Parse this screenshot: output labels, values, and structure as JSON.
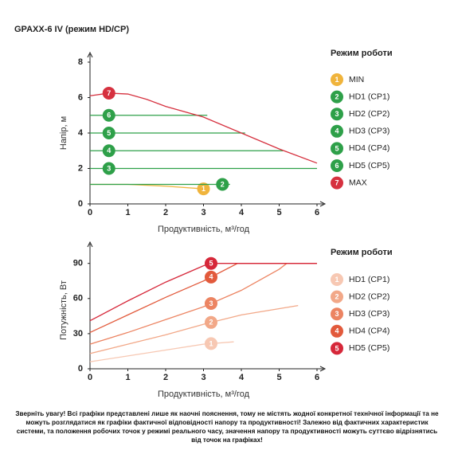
{
  "title": "GPAXX-6 IV (режим HD/CP)",
  "note": "Зверніть увагу! Всі графіки представлені лише як наочні пояснення, тому не містять жодної конкретної технічної інформації та не можуть розглядатися як графіки фактичної відповідності напору та продуктивності! Залежно від фактичних характеристик системи, та положення робочих точок у режимі реального часу, значення напору та продуктивності можуть суттєво відрізнятись від точок на графіках!",
  "chart_data": [
    {
      "type": "line",
      "x_label": "Продуктивність, м³/год",
      "y_label": "Напір, м",
      "legend_title": "Режим роботи",
      "xlim": [
        0,
        6
      ],
      "xticks": [
        0,
        1,
        2,
        3,
        4,
        5,
        6
      ],
      "ylim": [
        0,
        8
      ],
      "yticks": [
        0,
        2,
        4,
        6,
        8
      ],
      "series": [
        {
          "name": "MIN",
          "badge": "1",
          "badge_x": 3,
          "color": "#f0b43c",
          "x": [
            0,
            1,
            2,
            3
          ],
          "values": [
            1.1,
            1.1,
            1.0,
            0.85
          ]
        },
        {
          "name": "HD1 (CP1)",
          "badge": "2",
          "badge_x": 3.5,
          "color": "#2ea049",
          "x": [
            0,
            3.7
          ],
          "values": [
            1.1,
            1.1
          ]
        },
        {
          "name": "HD2 (CP2)",
          "badge": "3",
          "badge_x": 0.5,
          "color": "#2ea049",
          "x": [
            0,
            6
          ],
          "values": [
            2,
            2
          ]
        },
        {
          "name": "HD3 (CP3)",
          "badge": "4",
          "badge_x": 0.5,
          "color": "#2ea049",
          "x": [
            0,
            5.1
          ],
          "values": [
            3,
            3
          ]
        },
        {
          "name": "HD4 (CP4)",
          "badge": "5",
          "badge_x": 0.5,
          "color": "#2ea049",
          "x": [
            0,
            4.1
          ],
          "values": [
            4,
            4
          ]
        },
        {
          "name": "HD5 (CP5)",
          "badge": "6",
          "badge_x": 0.5,
          "color": "#2ea049",
          "x": [
            0,
            3.1
          ],
          "values": [
            5,
            5
          ]
        },
        {
          "name": "MAX",
          "badge": "7",
          "badge_x": 0.5,
          "color": "#d6313f",
          "x": [
            0,
            0.5,
            1,
            1.5,
            2,
            3,
            4,
            5,
            6
          ],
          "values": [
            6.1,
            6.25,
            6.2,
            5.9,
            5.5,
            4.9,
            4.0,
            3.1,
            2.3
          ]
        }
      ]
    },
    {
      "type": "line",
      "x_label": "Продуктивність, м³/год",
      "y_label": "Потужність, Вт",
      "legend_title": "Режим роботи",
      "xlim": [
        0,
        6
      ],
      "xticks": [
        0,
        1,
        2,
        3,
        4,
        5,
        6
      ],
      "ylim": [
        0,
        100
      ],
      "yticks": [
        0,
        30,
        60,
        90
      ],
      "series": [
        {
          "name": "HD1 (CP1)",
          "badge": "1",
          "badge_x": 3.2,
          "color": "#f7c8b3",
          "x": [
            0,
            1,
            2,
            3,
            3.8
          ],
          "values": [
            6,
            11,
            16,
            21,
            23
          ]
        },
        {
          "name": "HD2 (CP2)",
          "badge": "2",
          "badge_x": 3.2,
          "color": "#f2a888",
          "x": [
            0,
            1,
            2,
            3,
            4,
            5.5
          ],
          "values": [
            13,
            21,
            29,
            38,
            46,
            54
          ]
        },
        {
          "name": "HD3 (CP3)",
          "badge": "3",
          "badge_x": 3.2,
          "color": "#ec8462",
          "x": [
            0,
            1,
            2,
            3,
            4,
            5,
            5.2
          ],
          "values": [
            21,
            31,
            42,
            53,
            67,
            85,
            90
          ]
        },
        {
          "name": "HD4 (CP4)",
          "badge": "4",
          "badge_x": 3.2,
          "color": "#e25a3c",
          "x": [
            0,
            1,
            2,
            3,
            3.9,
            6
          ],
          "values": [
            31,
            46,
            61,
            75,
            90,
            90
          ]
        },
        {
          "name": "HD5 (CP5)",
          "badge": "5",
          "badge_x": 3.2,
          "color": "#d6283a",
          "x": [
            0,
            1,
            2,
            3,
            3.2,
            6
          ],
          "values": [
            41,
            58,
            74,
            88,
            90,
            90
          ]
        }
      ]
    }
  ]
}
